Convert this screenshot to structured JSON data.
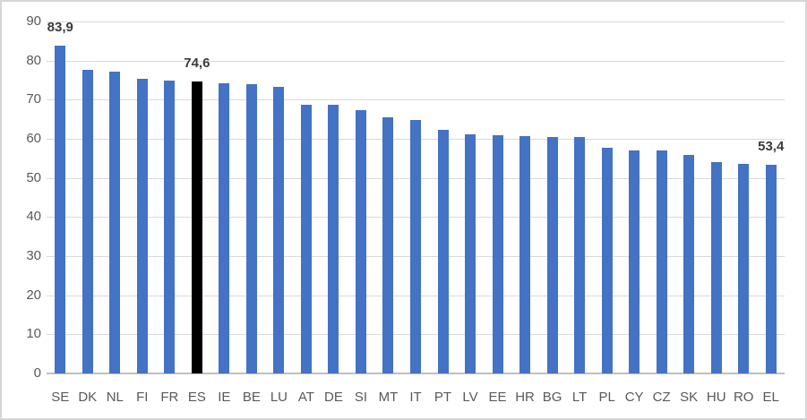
{
  "chart_data": {
    "type": "bar",
    "title": "",
    "xlabel": "",
    "ylabel": "",
    "categories": [
      "SE",
      "DK",
      "NL",
      "FI",
      "FR",
      "ES",
      "IE",
      "BE",
      "LU",
      "AT",
      "DE",
      "SI",
      "MT",
      "IT",
      "PT",
      "LV",
      "EE",
      "HR",
      "BG",
      "LT",
      "PL",
      "CY",
      "CZ",
      "SK",
      "HU",
      "RO",
      "EL"
    ],
    "values": [
      83.9,
      77.7,
      77.1,
      75.3,
      75.0,
      74.6,
      74.1,
      74.0,
      73.4,
      68.7,
      68.6,
      67.4,
      65.5,
      64.7,
      62.4,
      61.2,
      60.9,
      60.6,
      60.5,
      60.4,
      57.6,
      57.1,
      57.0,
      55.8,
      54.1,
      53.7,
      53.4
    ],
    "highlighted_category": "ES",
    "data_labels": {
      "SE": "83,9",
      "ES": "74,6",
      "EL": "53,4"
    },
    "decimal_separator": ",",
    "ylim": [
      0,
      90
    ],
    "yticks": [
      0,
      10,
      20,
      30,
      40,
      50,
      60,
      70,
      80,
      90
    ],
    "grid": true,
    "legend": false
  },
  "colors": {
    "bar": "#4472C4",
    "highlighted_bar": "#000000",
    "gridline": "#D9D9D9",
    "axis_line": "#BFBFBF",
    "tick_label": "#595959",
    "data_label": "#3B3B3B",
    "background": "#FFFFFF",
    "frame_border": "#D6D6D6"
  }
}
